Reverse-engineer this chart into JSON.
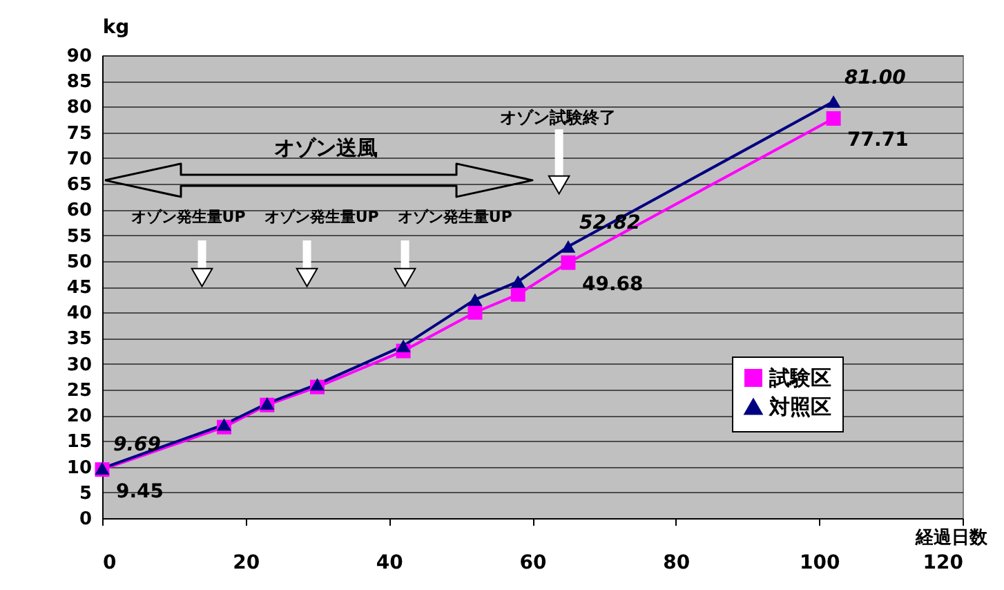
{
  "chart_data": {
    "type": "line",
    "xlabel": "経過日数",
    "ylabel": "kg",
    "x": [
      0,
      17,
      23,
      30,
      42,
      52,
      58,
      65,
      102
    ],
    "series": [
      {
        "name": "試験区",
        "color": "#ff00ff",
        "marker": "square",
        "line_style": "solid",
        "values": [
          9.45,
          17.7,
          22,
          25.5,
          32.5,
          40,
          43.5,
          49.68,
          77.71
        ],
        "value_labels": [
          "9.45",
          null,
          null,
          null,
          null,
          null,
          null,
          "49.68",
          "77.71"
        ]
      },
      {
        "name": "対照区",
        "color": "#000080",
        "marker": "triangle",
        "line_style": "solid",
        "values": [
          9.69,
          18.2,
          22.3,
          26,
          33.5,
          42.5,
          46,
          52.82,
          81.0
        ],
        "value_labels": [
          "9.69",
          null,
          null,
          null,
          null,
          null,
          null,
          "52.82",
          "81.00"
        ]
      }
    ],
    "xlim": [
      0,
      120
    ],
    "xticks": [
      0,
      20,
      40,
      60,
      80,
      100,
      120
    ],
    "ylim": [
      0,
      90
    ],
    "yticks": [
      0,
      5,
      10,
      15,
      20,
      25,
      30,
      35,
      40,
      45,
      50,
      55,
      60,
      65,
      70,
      75,
      80,
      85,
      90
    ],
    "grid": "y",
    "legend": "bottom right",
    "annotations": [
      "オゾン送風",
      "オゾン発生量UP",
      "オゾン発生量UP",
      "オゾン発生量UP",
      "オゾン試験終了"
    ]
  }
}
